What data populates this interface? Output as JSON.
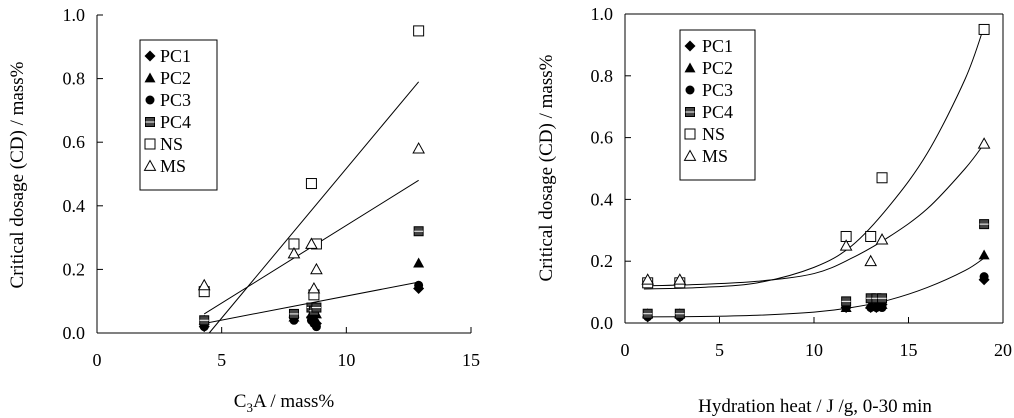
{
  "chart_data": [
    {
      "type": "scatter",
      "title": "",
      "xlabel_main": "C",
      "xlabel_sub": "3",
      "xlabel_rest": "A / mass%",
      "ylabel": "Critical dosage (CD) / mass%",
      "xlim": [
        0,
        15
      ],
      "ylim": [
        0,
        1.0
      ],
      "xticks": [
        "0",
        "5",
        "10",
        "15"
      ],
      "yticks": [
        "0.0",
        "0.2",
        "0.4",
        "0.6",
        "0.8",
        "1.0"
      ],
      "legend_placement": "top-left",
      "grid": false,
      "series": [
        {
          "name": "PC1",
          "marker": "diamond",
          "points": [
            [
              4.3,
              0.02
            ],
            [
              7.9,
              0.05
            ],
            [
              8.6,
              0.05
            ],
            [
              8.7,
              0.04
            ],
            [
              8.8,
              0.03
            ],
            [
              12.9,
              0.14
            ]
          ]
        },
        {
          "name": "PC2",
          "marker": "triangle-filled",
          "points": [
            [
              4.3,
              0.04
            ],
            [
              7.9,
              0.05
            ],
            [
              8.6,
              0.06
            ],
            [
              8.7,
              0.05
            ],
            [
              8.8,
              0.06
            ],
            [
              12.9,
              0.22
            ]
          ]
        },
        {
          "name": "PC3",
          "marker": "circle",
          "points": [
            [
              4.3,
              0.02
            ],
            [
              7.9,
              0.04
            ],
            [
              8.6,
              0.04
            ],
            [
              8.7,
              0.03
            ],
            [
              8.8,
              0.02
            ],
            [
              12.9,
              0.15
            ]
          ]
        },
        {
          "name": "PC4",
          "marker": "square-filled",
          "points": [
            [
              4.3,
              0.04
            ],
            [
              7.9,
              0.06
            ],
            [
              8.6,
              0.08
            ],
            [
              8.7,
              0.07
            ],
            [
              8.8,
              0.08
            ],
            [
              12.9,
              0.32
            ]
          ]
        },
        {
          "name": "NS",
          "marker": "square-open",
          "points": [
            [
              4.3,
              0.13
            ],
            [
              7.9,
              0.28
            ],
            [
              8.6,
              0.47
            ],
            [
              8.7,
              0.12
            ],
            [
              8.8,
              0.28
            ],
            [
              12.9,
              0.95
            ]
          ]
        },
        {
          "name": "MS",
          "marker": "triangle-open",
          "points": [
            [
              4.3,
              0.15
            ],
            [
              7.9,
              0.25
            ],
            [
              8.6,
              0.28
            ],
            [
              8.7,
              0.14
            ],
            [
              8.8,
              0.2
            ],
            [
              12.9,
              0.58
            ]
          ]
        }
      ],
      "fit_lines": [
        {
          "kind": "linear",
          "from": [
            4.5,
            0.0
          ],
          "to": [
            12.9,
            0.79
          ]
        },
        {
          "kind": "linear",
          "from": [
            4.3,
            0.06
          ],
          "to": [
            12.9,
            0.48
          ]
        },
        {
          "kind": "linear",
          "from": [
            4.3,
            0.03
          ],
          "to": [
            12.9,
            0.16
          ]
        }
      ]
    },
    {
      "type": "scatter",
      "title": "",
      "xlabel": "Hydration heat / J /g, 0-30 min",
      "ylabel": "Critical dosage (CD) / mass%",
      "xlim": [
        0,
        20
      ],
      "ylim": [
        0,
        1.0
      ],
      "xticks": [
        "0",
        "5",
        "10",
        "15",
        "20"
      ],
      "yticks": [
        "0.0",
        "0.2",
        "0.4",
        "0.6",
        "0.8",
        "1.0"
      ],
      "legend_placement": "top-left",
      "grid": false,
      "series": [
        {
          "name": "PC1",
          "marker": "diamond",
          "points": [
            [
              1.2,
              0.02
            ],
            [
              2.9,
              0.02
            ],
            [
              11.7,
              0.05
            ],
            [
              13.0,
              0.05
            ],
            [
              13.3,
              0.05
            ],
            [
              13.6,
              0.06
            ],
            [
              19.0,
              0.14
            ]
          ]
        },
        {
          "name": "PC2",
          "marker": "triangle-filled",
          "points": [
            [
              1.2,
              0.03
            ],
            [
              2.9,
              0.03
            ],
            [
              11.7,
              0.05
            ],
            [
              13.0,
              0.06
            ],
            [
              13.3,
              0.06
            ],
            [
              13.6,
              0.06
            ],
            [
              19.0,
              0.22
            ]
          ]
        },
        {
          "name": "PC3",
          "marker": "circle",
          "points": [
            [
              1.2,
              0.02
            ],
            [
              2.9,
              0.02
            ],
            [
              11.7,
              0.05
            ],
            [
              13.0,
              0.05
            ],
            [
              13.3,
              0.05
            ],
            [
              13.6,
              0.05
            ],
            [
              19.0,
              0.15
            ]
          ]
        },
        {
          "name": "PC4",
          "marker": "square-filled",
          "points": [
            [
              1.2,
              0.03
            ],
            [
              2.9,
              0.03
            ],
            [
              11.7,
              0.07
            ],
            [
              13.0,
              0.08
            ],
            [
              13.3,
              0.08
            ],
            [
              13.6,
              0.08
            ],
            [
              19.0,
              0.32
            ]
          ]
        },
        {
          "name": "NS",
          "marker": "square-open",
          "points": [
            [
              1.2,
              0.13
            ],
            [
              2.9,
              0.13
            ],
            [
              11.7,
              0.28
            ],
            [
              13.0,
              0.28
            ],
            [
              13.6,
              0.47
            ],
            [
              19.0,
              0.95
            ]
          ]
        },
        {
          "name": "MS",
          "marker": "triangle-open",
          "points": [
            [
              1.2,
              0.14
            ],
            [
              2.9,
              0.14
            ],
            [
              11.7,
              0.25
            ],
            [
              13.0,
              0.2
            ],
            [
              13.6,
              0.27
            ],
            [
              19.0,
              0.58
            ]
          ]
        }
      ],
      "fit_curves": [
        {
          "kind": "exponential",
          "points": [
            [
              1.0,
              0.11
            ],
            [
              4.0,
              0.115
            ],
            [
              7.0,
              0.13
            ],
            [
              10.0,
              0.18
            ],
            [
              12.0,
              0.25
            ],
            [
              14.0,
              0.38
            ],
            [
              16.0,
              0.55
            ],
            [
              18.0,
              0.79
            ],
            [
              19.0,
              0.96
            ]
          ]
        },
        {
          "kind": "exponential",
          "points": [
            [
              1.0,
              0.12
            ],
            [
              4.0,
              0.125
            ],
            [
              7.0,
              0.135
            ],
            [
              10.0,
              0.16
            ],
            [
              12.0,
              0.21
            ],
            [
              14.0,
              0.28
            ],
            [
              16.0,
              0.37
            ],
            [
              18.0,
              0.5
            ],
            [
              19.0,
              0.58
            ]
          ]
        },
        {
          "kind": "exponential",
          "points": [
            [
              1.0,
              0.02
            ],
            [
              4.0,
              0.021
            ],
            [
              7.0,
              0.025
            ],
            [
              10.0,
              0.035
            ],
            [
              12.0,
              0.05
            ],
            [
              14.0,
              0.075
            ],
            [
              16.0,
              0.115
            ],
            [
              18.0,
              0.17
            ],
            [
              19.0,
              0.21
            ]
          ]
        }
      ]
    }
  ]
}
